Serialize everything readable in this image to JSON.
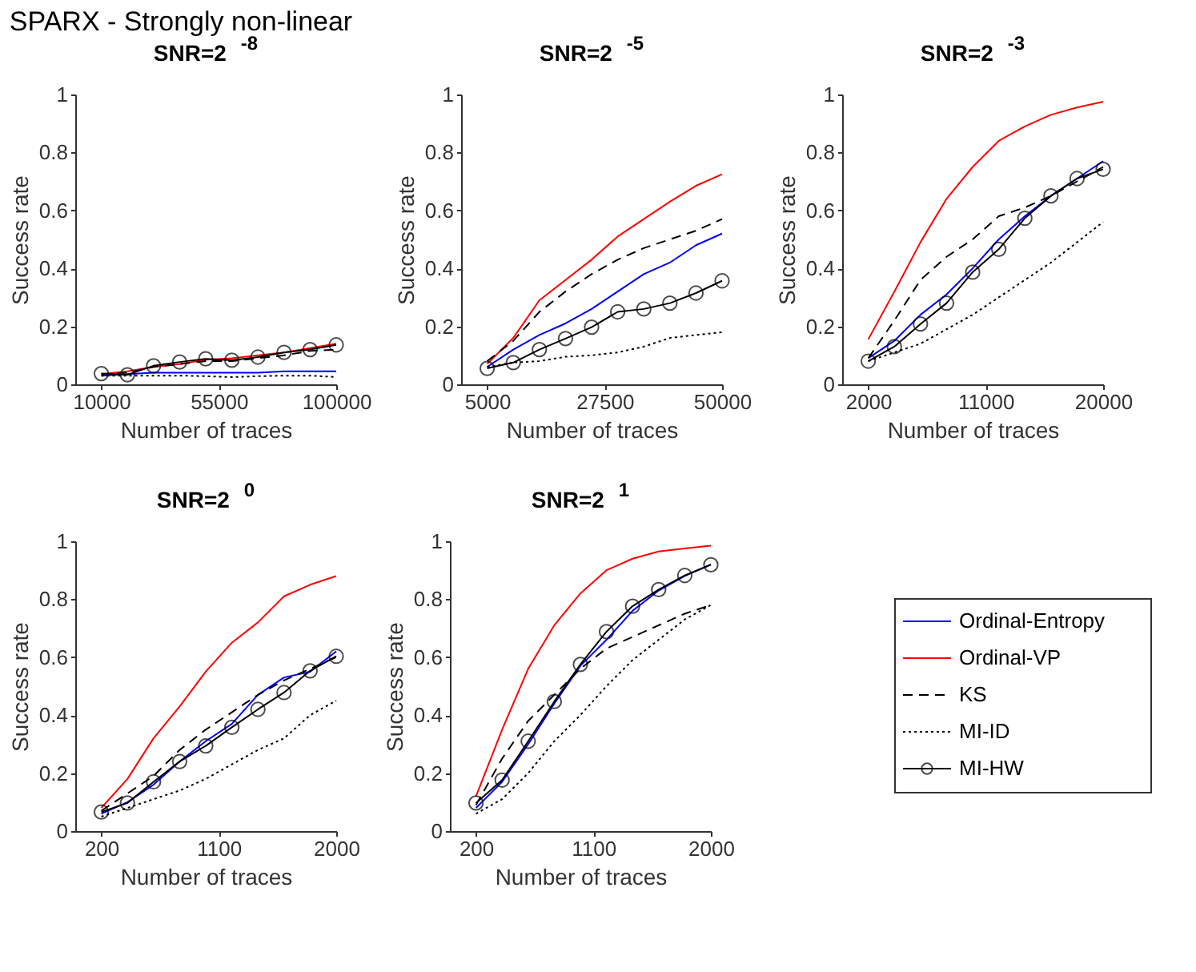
{
  "chart_data": [
    {
      "type": "line",
      "title": "SNR=2$^{-8}$",
      "annotations": [
        "SPARX - Strongly non-linear"
      ],
      "xlabel": "Number of traces",
      "ylabel": "Success rate",
      "x": [
        10000,
        20000,
        30000,
        40000,
        50000,
        60000,
        70000,
        80000,
        90000,
        100000
      ],
      "xlim": [
        0,
        100000
      ],
      "xticks": [
        10000,
        55000,
        100000
      ],
      "ylim": [
        0,
        1
      ],
      "yticks": [
        0,
        0.2,
        0.4,
        0.6,
        0.8,
        1
      ],
      "series": [
        {
          "color": "#0000ff",
          "line_style": "solid",
          "values": [
            0.03,
            0.035,
            0.04,
            0.04,
            0.04,
            0.04,
            0.04,
            0.045,
            0.045,
            0.045
          ]
        },
        {
          "color": "#ff0000",
          "line_style": "solid",
          "values": [
            0.035,
            0.045,
            0.06,
            0.07,
            0.085,
            0.09,
            0.1,
            0.11,
            0.125,
            0.14
          ]
        },
        {
          "color": "#000000",
          "line_style": "dashed",
          "values": [
            0.035,
            0.04,
            0.06,
            0.07,
            0.08,
            0.08,
            0.09,
            0.1,
            0.115,
            0.12
          ]
        },
        {
          "color": "#000000",
          "line_style": "dotted",
          "values": [
            0.03,
            0.03,
            0.03,
            0.03,
            0.028,
            0.025,
            0.028,
            0.03,
            0.03,
            0.025
          ]
        },
        {
          "color": "#000000",
          "line_style": "solid",
          "marker": "circle",
          "values": [
            0.037,
            0.033,
            0.064,
            0.077,
            0.088,
            0.083,
            0.094,
            0.11,
            0.12,
            0.136
          ]
        }
      ]
    },
    {
      "type": "line",
      "title": "SNR=2$^{-5}$",
      "xlabel": "Number of traces",
      "ylabel": "Success rate",
      "x": [
        5000,
        10000,
        15000,
        20000,
        25000,
        30000,
        35000,
        40000,
        45000,
        50000
      ],
      "xlim": [
        0,
        50000
      ],
      "xticks": [
        5000,
        27500,
        50000
      ],
      "ylim": [
        0,
        1
      ],
      "yticks": [
        0,
        0.2,
        0.4,
        0.6,
        0.8,
        1
      ],
      "series": [
        {
          "color": "#0000ff",
          "line_style": "solid",
          "values": [
            0.06,
            0.12,
            0.17,
            0.21,
            0.26,
            0.32,
            0.38,
            0.42,
            0.48,
            0.52
          ]
        },
        {
          "color": "#ff0000",
          "line_style": "solid",
          "values": [
            0.07,
            0.16,
            0.29,
            0.36,
            0.43,
            0.51,
            0.57,
            0.63,
            0.685,
            0.725
          ]
        },
        {
          "color": "#000000",
          "line_style": "dashed",
          "values": [
            0.08,
            0.15,
            0.25,
            0.32,
            0.38,
            0.43,
            0.47,
            0.5,
            0.53,
            0.57
          ]
        },
        {
          "color": "#000000",
          "line_style": "dotted",
          "values": [
            0.06,
            0.075,
            0.08,
            0.095,
            0.1,
            0.11,
            0.13,
            0.16,
            0.17,
            0.18
          ]
        },
        {
          "color": "#000000",
          "line_style": "solid",
          "marker": "circle",
          "values": [
            0.055,
            0.075,
            0.12,
            0.158,
            0.197,
            0.25,
            0.26,
            0.28,
            0.315,
            0.357
          ]
        }
      ]
    },
    {
      "type": "line",
      "title": "SNR=2$^{-3}$",
      "xlabel": "Number of traces",
      "ylabel": "Success rate",
      "x": [
        2000,
        4000,
        6000,
        8000,
        10000,
        12000,
        14000,
        16000,
        18000,
        20000
      ],
      "xlim": [
        0,
        20000
      ],
      "xticks": [
        2000,
        11000,
        20000
      ],
      "ylim": [
        0,
        1
      ],
      "yticks": [
        0,
        0.2,
        0.4,
        0.6,
        0.8,
        1
      ],
      "series": [
        {
          "color": "#0000ff",
          "line_style": "solid",
          "values": [
            0.09,
            0.15,
            0.24,
            0.31,
            0.4,
            0.5,
            0.58,
            0.65,
            0.71,
            0.77
          ]
        },
        {
          "color": "#ff0000",
          "line_style": "solid",
          "values": [
            0.155,
            0.32,
            0.49,
            0.64,
            0.75,
            0.84,
            0.89,
            0.93,
            0.955,
            0.975
          ]
        },
        {
          "color": "#000000",
          "line_style": "dashed",
          "values": [
            0.09,
            0.22,
            0.36,
            0.44,
            0.5,
            0.58,
            0.61,
            0.65,
            0.7,
            0.75
          ]
        },
        {
          "color": "#000000",
          "line_style": "dotted",
          "values": [
            0.08,
            0.11,
            0.14,
            0.19,
            0.24,
            0.3,
            0.36,
            0.42,
            0.49,
            0.56
          ]
        },
        {
          "color": "#000000",
          "line_style": "solid",
          "marker": "circle",
          "values": [
            0.08,
            0.13,
            0.208,
            0.28,
            0.387,
            0.466,
            0.573,
            0.65,
            0.71,
            0.742
          ]
        }
      ]
    },
    {
      "type": "line",
      "title": "SNR=2$^{0}$",
      "xlabel": "Number of traces",
      "ylabel": "Success rate",
      "x": [
        200,
        400,
        600,
        800,
        1000,
        1200,
        1400,
        1600,
        1800,
        2000
      ],
      "xlim": [
        0,
        2000
      ],
      "xticks": [
        200,
        1100,
        2000
      ],
      "ylim": [
        0,
        1
      ],
      "yticks": [
        0,
        0.2,
        0.4,
        0.6,
        0.8,
        1
      ],
      "series": [
        {
          "color": "#0000ff",
          "line_style": "solid",
          "values": [
            0.06,
            0.1,
            0.16,
            0.24,
            0.31,
            0.37,
            0.47,
            0.53,
            0.55,
            0.62
          ]
        },
        {
          "color": "#ff0000",
          "line_style": "solid",
          "values": [
            0.08,
            0.18,
            0.32,
            0.43,
            0.55,
            0.65,
            0.72,
            0.81,
            0.85,
            0.88
          ]
        },
        {
          "color": "#000000",
          "line_style": "dashed",
          "values": [
            0.07,
            0.13,
            0.19,
            0.28,
            0.35,
            0.41,
            0.47,
            0.52,
            0.56,
            0.6
          ]
        },
        {
          "color": "#000000",
          "line_style": "dotted",
          "values": [
            0.05,
            0.08,
            0.11,
            0.14,
            0.18,
            0.23,
            0.28,
            0.32,
            0.4,
            0.45
          ]
        },
        {
          "color": "#000000",
          "line_style": "solid",
          "marker": "circle",
          "values": [
            0.066,
            0.097,
            0.17,
            0.24,
            0.294,
            0.358,
            0.42,
            0.478,
            0.553,
            0.603
          ]
        }
      ]
    },
    {
      "type": "line",
      "title": "SNR=2$^{1}$",
      "xlabel": "Number of traces",
      "ylabel": "Success rate",
      "x": [
        200,
        400,
        600,
        800,
        1000,
        1200,
        1400,
        1600,
        1800,
        2000
      ],
      "xlim": [
        0,
        2000
      ],
      "xticks": [
        200,
        1100,
        2000
      ],
      "ylim": [
        0,
        1
      ],
      "yticks": [
        0,
        0.2,
        0.4,
        0.6,
        0.8,
        1
      ],
      "legend": "right",
      "series": [
        {
          "name": "Ordinal-Entropy",
          "color": "#0000ff",
          "line_style": "solid",
          "values": [
            0.08,
            0.17,
            0.3,
            0.44,
            0.57,
            0.66,
            0.76,
            0.83,
            0.88,
            0.92
          ]
        },
        {
          "name": "Ordinal-VP",
          "color": "#ff0000",
          "line_style": "solid",
          "values": [
            0.12,
            0.35,
            0.56,
            0.71,
            0.82,
            0.9,
            0.94,
            0.965,
            0.975,
            0.985
          ]
        },
        {
          "name": "KS",
          "color": "#000000",
          "line_style": "dashed",
          "values": [
            0.09,
            0.25,
            0.38,
            0.47,
            0.56,
            0.63,
            0.67,
            0.71,
            0.75,
            0.78
          ]
        },
        {
          "name": "MI-ID",
          "color": "#000000",
          "line_style": "dotted",
          "values": [
            0.06,
            0.11,
            0.2,
            0.31,
            0.4,
            0.5,
            0.59,
            0.66,
            0.73,
            0.78
          ]
        },
        {
          "name": "MI-HW",
          "color": "#000000",
          "line_style": "solid",
          "marker": "circle",
          "values": [
            0.097,
            0.176,
            0.31,
            0.447,
            0.575,
            0.688,
            0.776,
            0.833,
            0.882,
            0.919
          ]
        }
      ]
    }
  ]
}
